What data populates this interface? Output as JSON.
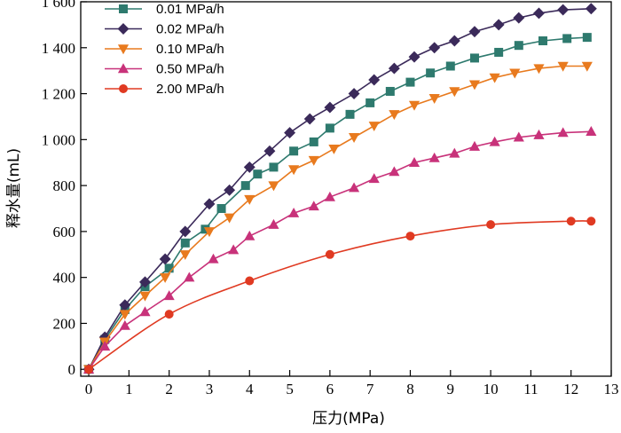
{
  "chart_data": {
    "type": "line",
    "title": "",
    "xlabel": "压力(MPa)",
    "ylabel": "释水量(mL)",
    "xlim": [
      -0.2,
      13
    ],
    "ylim": [
      -30,
      1600
    ],
    "x_ticks": [
      0,
      1,
      2,
      3,
      4,
      5,
      6,
      7,
      8,
      9,
      10,
      11,
      12,
      13
    ],
    "x_tick_labels": [
      "0",
      "1",
      "2",
      "3",
      "4",
      "5",
      "6",
      "7",
      "8",
      "9",
      "10",
      "11",
      "12",
      "13"
    ],
    "y_ticks": [
      0,
      200,
      400,
      600,
      800,
      1000,
      1200,
      1400,
      1600
    ],
    "y_tick_labels": [
      "0",
      "200",
      "400",
      "600",
      "800",
      "1 000",
      "1 200",
      "1 400",
      "1 600"
    ],
    "grid": false,
    "legend_position": "top-left",
    "series": [
      {
        "name": "0.01 MPa/h",
        "color": "#2e7a6e",
        "marker": "square",
        "x": [
          0,
          0.4,
          0.9,
          1.4,
          2.0,
          2.4,
          2.9,
          3.3,
          3.9,
          4.2,
          4.6,
          5.1,
          5.6,
          6.0,
          6.5,
          7.0,
          7.5,
          8.0,
          8.5,
          9.0,
          9.6,
          10.2,
          10.7,
          11.3,
          11.9,
          12.4
        ],
        "y": [
          0,
          130,
          260,
          360,
          440,
          550,
          610,
          700,
          800,
          850,
          880,
          950,
          990,
          1050,
          1110,
          1160,
          1210,
          1250,
          1290,
          1320,
          1355,
          1380,
          1410,
          1430,
          1440,
          1445
        ]
      },
      {
        "name": "0.02 MPa/h",
        "color": "#3b2a5a",
        "marker": "diamond",
        "x": [
          0,
          0.4,
          0.9,
          1.4,
          1.9,
          2.4,
          3.0,
          3.5,
          4.0,
          4.5,
          5.0,
          5.5,
          6.0,
          6.6,
          7.1,
          7.6,
          8.1,
          8.6,
          9.1,
          9.6,
          10.2,
          10.7,
          11.2,
          11.8,
          12.5
        ],
        "y": [
          0,
          140,
          280,
          380,
          480,
          600,
          720,
          780,
          880,
          950,
          1030,
          1090,
          1140,
          1200,
          1260,
          1310,
          1360,
          1400,
          1430,
          1470,
          1500,
          1530,
          1550,
          1565,
          1570
        ]
      },
      {
        "name": "0.10 MPa/h",
        "color": "#e87a1e",
        "marker": "triangle-down",
        "x": [
          0,
          0.4,
          0.9,
          1.4,
          1.9,
          2.4,
          3.0,
          3.5,
          4.0,
          4.6,
          5.1,
          5.6,
          6.1,
          6.6,
          7.1,
          7.6,
          8.1,
          8.6,
          9.1,
          9.6,
          10.1,
          10.6,
          11.2,
          11.8,
          12.4
        ],
        "y": [
          0,
          120,
          240,
          320,
          400,
          500,
          600,
          660,
          740,
          800,
          870,
          910,
          960,
          1010,
          1060,
          1110,
          1150,
          1180,
          1210,
          1240,
          1270,
          1290,
          1310,
          1320,
          1320
        ]
      },
      {
        "name": "0.50 MPa/h",
        "color": "#c8327a",
        "marker": "triangle-up",
        "x": [
          0,
          0.4,
          0.9,
          1.4,
          2.0,
          2.5,
          3.1,
          3.6,
          4.0,
          4.6,
          5.1,
          5.6,
          6.0,
          6.6,
          7.1,
          7.6,
          8.1,
          8.6,
          9.1,
          9.6,
          10.1,
          10.7,
          11.2,
          11.8,
          12.5
        ],
        "y": [
          0,
          100,
          190,
          250,
          320,
          400,
          480,
          520,
          580,
          630,
          680,
          710,
          750,
          790,
          830,
          860,
          900,
          920,
          940,
          970,
          990,
          1010,
          1020,
          1030,
          1035
        ]
      },
      {
        "name": "2.00 MPa/h",
        "color": "#e03a22",
        "marker": "circle",
        "x": [
          0,
          2,
          4,
          6,
          8,
          10,
          12,
          12.5
        ],
        "y": [
          0,
          240,
          385,
          500,
          580,
          630,
          645,
          645
        ]
      }
    ]
  }
}
